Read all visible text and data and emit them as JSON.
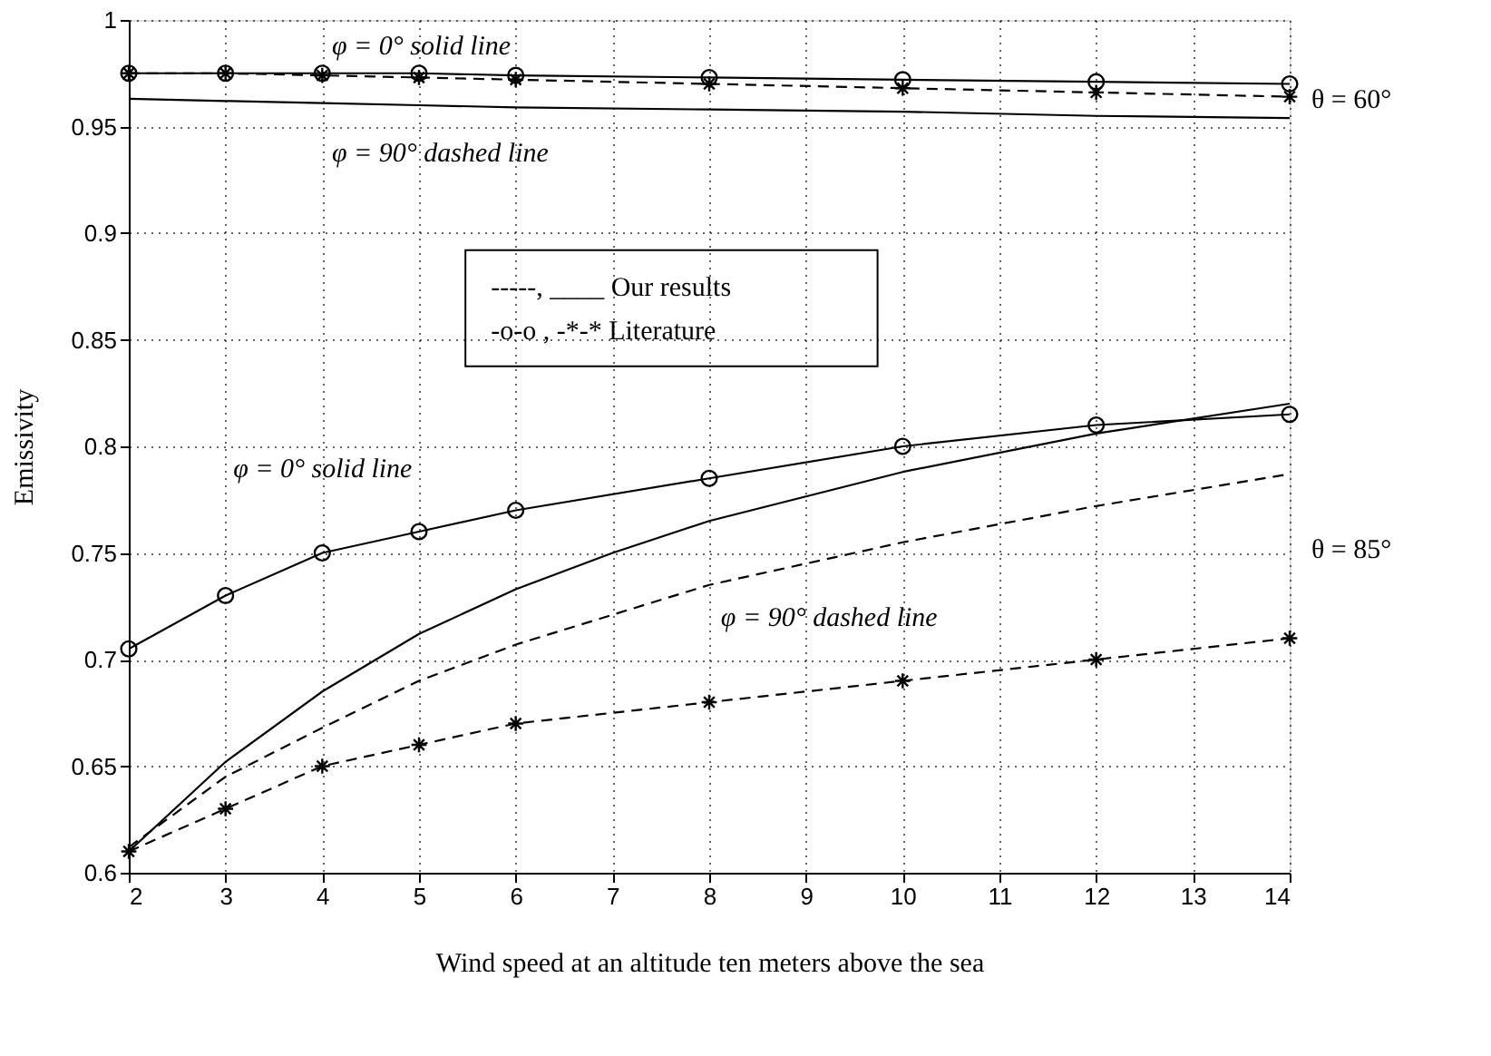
{
  "chart_data": {
    "type": "line",
    "xlabel": "Wind speed at an altitude ten meters above the sea",
    "ylabel": "Emissivity",
    "x": [
      2,
      3,
      4,
      5,
      6,
      8,
      10,
      12,
      14
    ],
    "xlim": [
      2,
      14
    ],
    "xticks": [
      2,
      3,
      4,
      5,
      6,
      7,
      8,
      9,
      10,
      11,
      12,
      13,
      14
    ],
    "ylim": [
      0.6,
      1
    ],
    "yticks": [
      0.6,
      0.65,
      0.7,
      0.75,
      0.8,
      0.85,
      0.9,
      0.95,
      1
    ],
    "grid": true,
    "series": [
      {
        "color": "#000000",
        "line_style": "solid",
        "marker": "none",
        "values": [
          0.963,
          0.962,
          0.961,
          0.96,
          0.959,
          0.958,
          0.957,
          0.955,
          0.954
        ]
      },
      {
        "color": "#000000",
        "line_style": "solid",
        "marker": "circle",
        "values": [
          0.975,
          0.975,
          0.975,
          0.975,
          0.974,
          0.973,
          0.972,
          0.971,
          0.97
        ]
      },
      {
        "color": "#000000",
        "line_style": "dashed",
        "marker": "cross",
        "values": [
          0.975,
          0.975,
          0.974,
          0.973,
          0.972,
          0.97,
          0.968,
          0.966,
          0.964
        ]
      },
      {
        "color": "#000000",
        "line_style": "solid",
        "marker": "circle",
        "values": [
          0.705,
          0.73,
          0.75,
          0.76,
          0.77,
          0.785,
          0.8,
          0.81,
          0.815
        ]
      },
      {
        "color": "#000000",
        "line_style": "dashed",
        "marker": "cross",
        "values": [
          0.61,
          0.63,
          0.65,
          0.66,
          0.67,
          0.68,
          0.69,
          0.7,
          0.71
        ]
      },
      {
        "color": "#000000",
        "line_style": "solid",
        "marker": "none",
        "x": [
          2,
          3,
          4,
          5,
          6,
          7,
          8,
          10,
          12,
          14
        ],
        "values": [
          0.61,
          0.652,
          0.685,
          0.712,
          0.733,
          0.75,
          0.765,
          0.788,
          0.806,
          0.82
        ]
      },
      {
        "color": "#000000",
        "line_style": "dashed",
        "marker": "none",
        "values": [
          0.612,
          0.645,
          0.668,
          0.69,
          0.707,
          0.735,
          0.755,
          0.772,
          0.787
        ]
      }
    ],
    "annotations": [
      "φ = 0°  solid line",
      "φ = 90°  dashed line",
      "θ = 60°",
      "φ = 0°  solid line",
      "θ = 85°",
      "φ = 90°  dashed line",
      "-----, ____ Our results",
      "-o-o , -*-* Literature"
    ]
  }
}
